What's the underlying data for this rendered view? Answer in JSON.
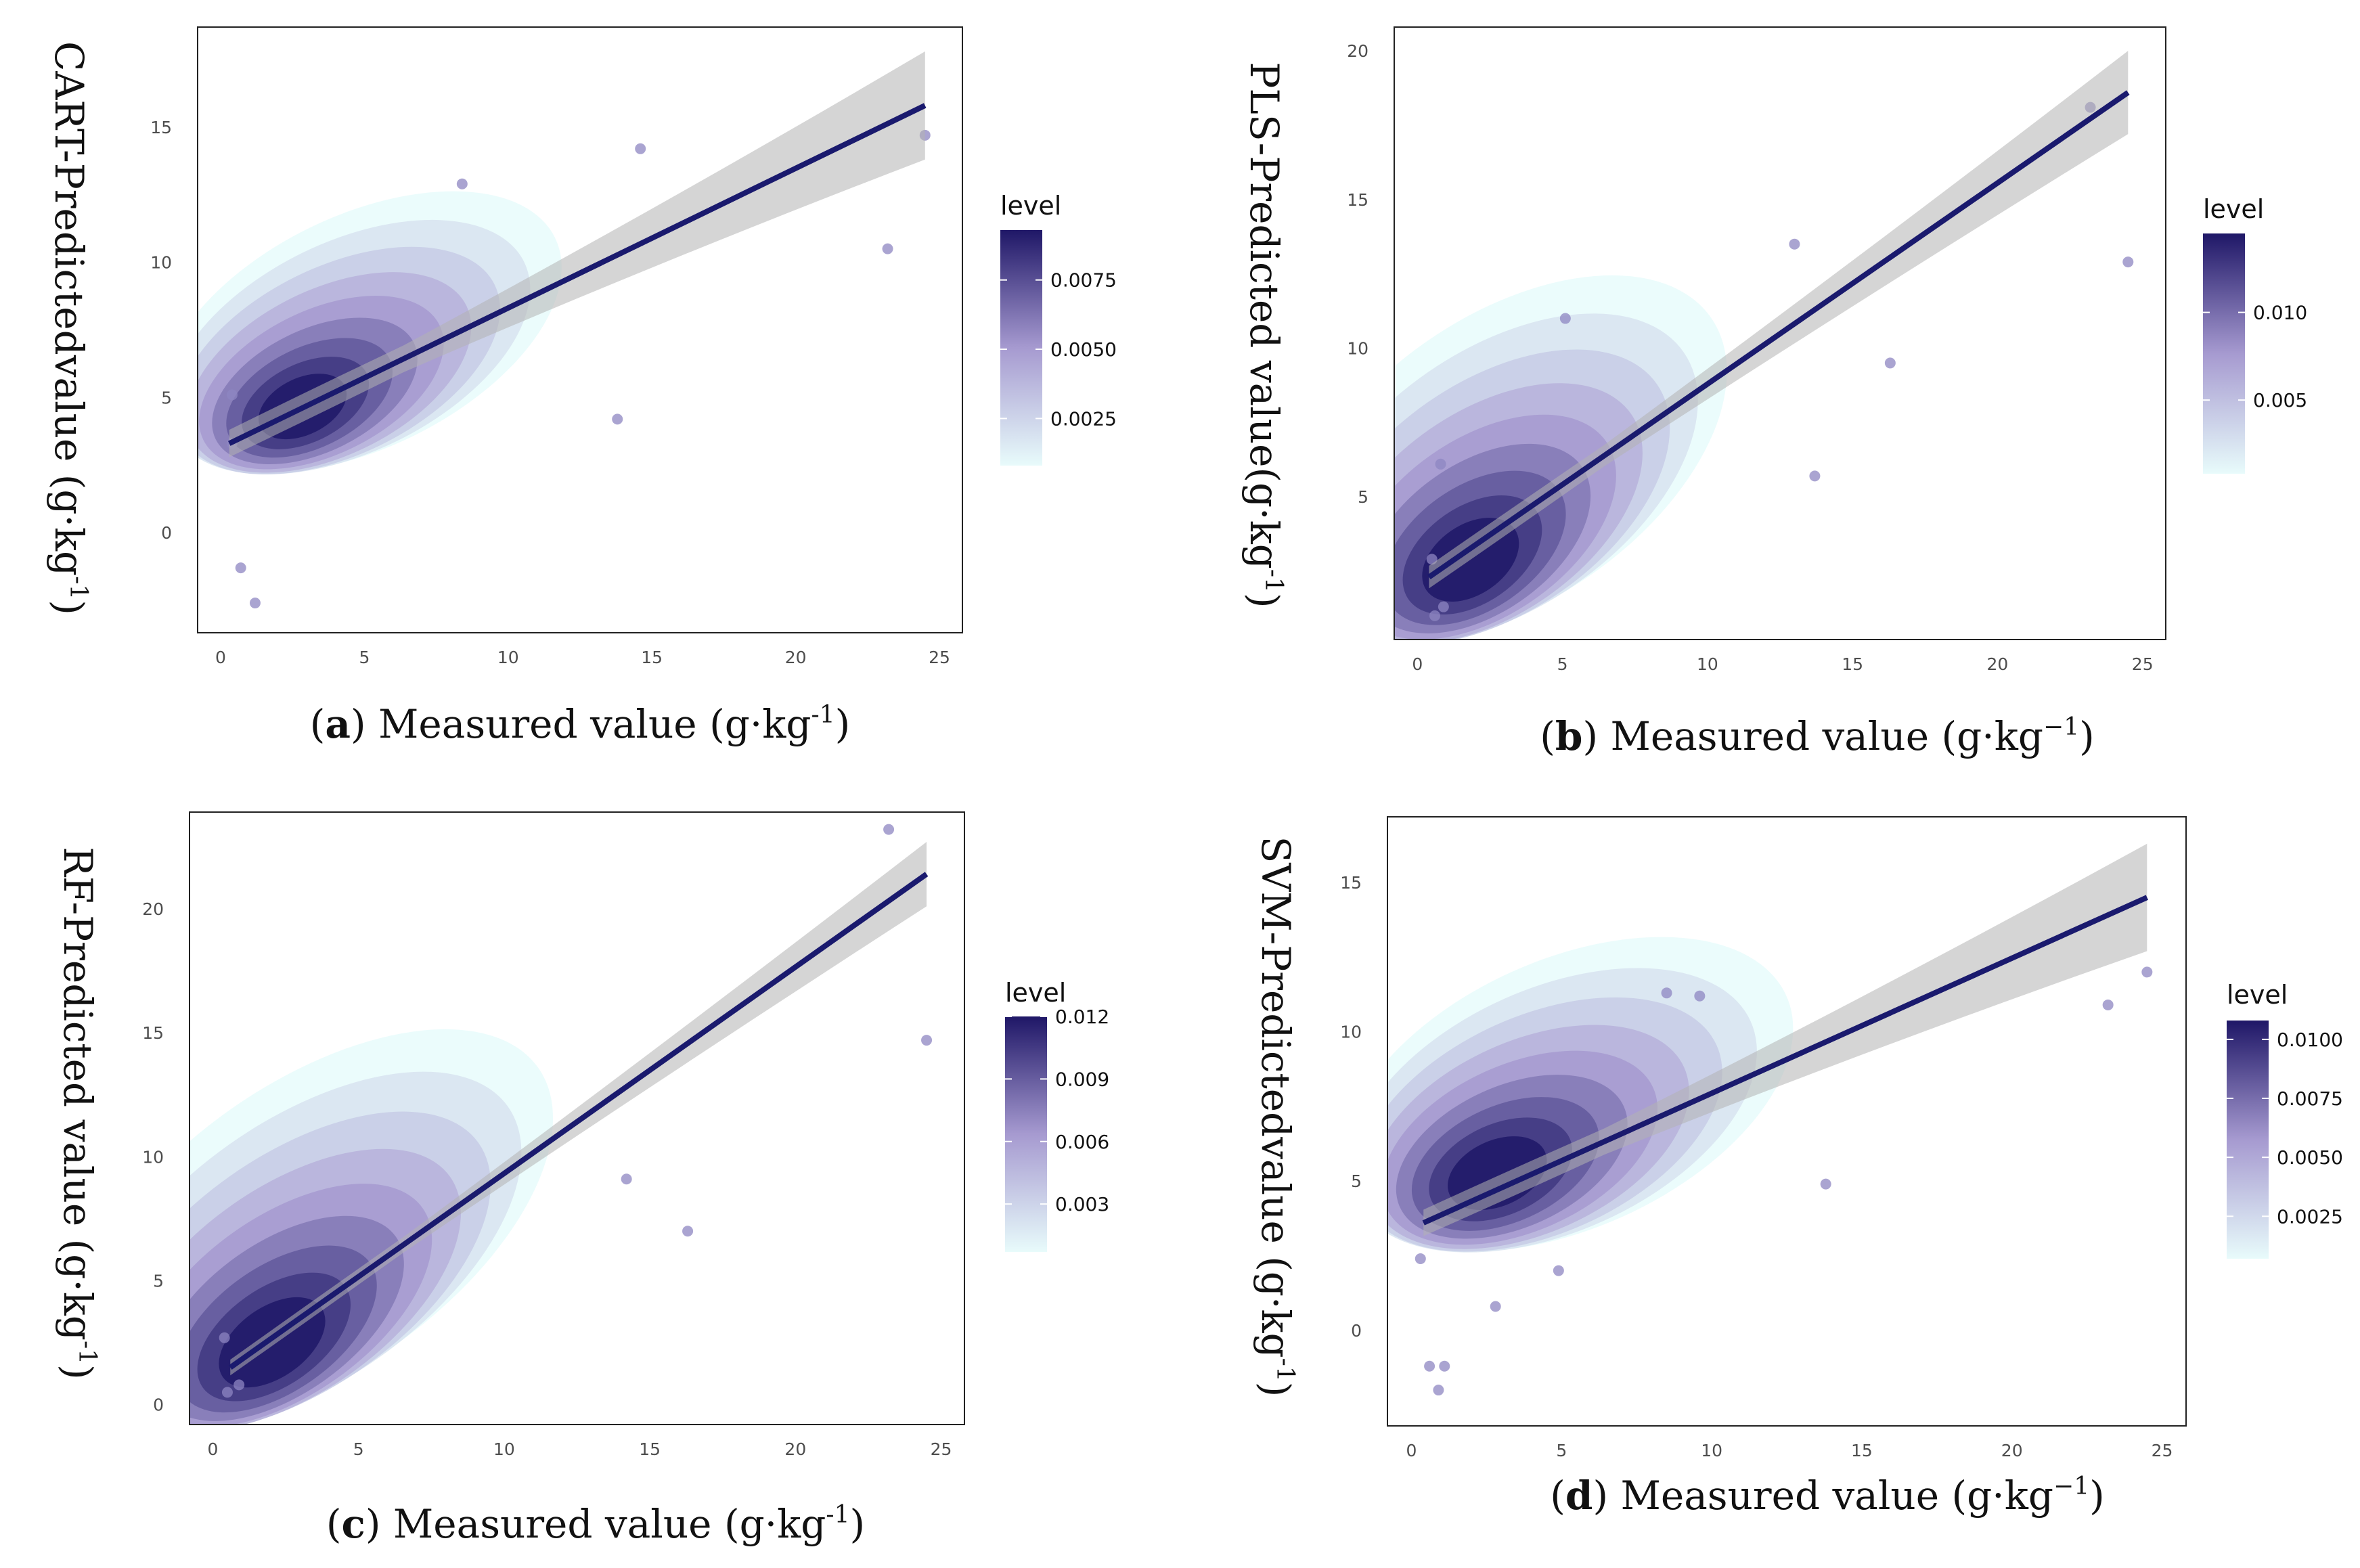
{
  "figure_title": "",
  "colors": {
    "line": "#1a1a6e",
    "band": "#b3b3b3",
    "point": "#8e85c2",
    "gradient_low": "#e8fbfb",
    "gradient_mid": "#a69ad0",
    "gradient_high": "#1f1767"
  },
  "chart_data": [
    {
      "id": "a",
      "type": "density-contour-scatter",
      "panel_label": "a",
      "xlabel": "Measured value (g·kg",
      "xlabel_sup": "-1",
      "xlabel_end": ")",
      "ylabel": "CART-Predictedvalue (g·kg",
      "ylabel_sup": "-1",
      "ylabel_end": ")",
      "xlim": [
        -0.8,
        25.8
      ],
      "ylim": [
        -3.7,
        18.7
      ],
      "xticks": [
        0,
        5,
        10,
        15,
        20,
        25
      ],
      "yticks": [
        0,
        5,
        10,
        15
      ],
      "legend": {
        "title": "level",
        "min": 0.0008,
        "max": 0.0093,
        "ticks": [
          "0.0025",
          "0.0050",
          "0.0075"
        ],
        "tick_values": [
          0.0025,
          0.005,
          0.0075
        ]
      },
      "regression": {
        "x0": 0.3,
        "y0": 3.3,
        "x1": 24.5,
        "y1": 15.8,
        "band0": 0.8,
        "band1": 2.0
      },
      "density_center": [
        2.8,
        4.6
      ],
      "density_extent": [
        7.5,
        4.3
      ],
      "points": [
        [
          24.5,
          14.7
        ],
        [
          23.2,
          10.5
        ],
        [
          14.6,
          14.2
        ],
        [
          13.8,
          4.2
        ],
        [
          1.2,
          -2.6
        ],
        [
          0.4,
          3.3
        ],
        [
          0.4,
          5.1
        ],
        [
          0.7,
          -1.3
        ],
        [
          8.4,
          12.9
        ]
      ]
    },
    {
      "id": "b",
      "type": "density-contour-scatter",
      "panel_label": "b",
      "xlabel": "Measured value (g·kg",
      "xlabel_sup": "−1",
      "xlabel_end": ")",
      "ylabel": "PLS-Predicted value(g·kg",
      "ylabel_sup": "-1",
      "ylabel_end": ")",
      "xlim": [
        -0.8,
        25.8
      ],
      "ylim": [
        0.2,
        20.8
      ],
      "xticks": [
        0,
        5,
        10,
        15,
        20,
        25
      ],
      "yticks": [
        5,
        10,
        15,
        20
      ],
      "legend": {
        "title": "level",
        "min": 0.0008,
        "max": 0.0145,
        "ticks": [
          "0.005",
          "0.010"
        ],
        "tick_values": [
          0.005,
          0.01
        ]
      },
      "regression": {
        "x0": 0.4,
        "y0": 2.3,
        "x1": 24.5,
        "y1": 18.6,
        "band0": 0.6,
        "band1": 1.4
      },
      "density_center": [
        1.8,
        2.8
      ],
      "density_extent": [
        8.5,
        4.8
      ],
      "points": [
        [
          24.5,
          12.9
        ],
        [
          23.2,
          18.1
        ],
        [
          16.3,
          9.5
        ],
        [
          13.7,
          5.7
        ],
        [
          5.1,
          11.0
        ],
        [
          0.8,
          6.1
        ],
        [
          0.6,
          1.0
        ],
        [
          0.9,
          1.3
        ],
        [
          0.5,
          2.9
        ],
        [
          13.0,
          13.5
        ]
      ]
    },
    {
      "id": "c",
      "type": "density-contour-scatter",
      "panel_label": "c",
      "xlabel": "Measured value (g·kg",
      "xlabel_sup": "-1",
      "xlabel_end": ")",
      "ylabel": "RF-Predicted value (g·kg",
      "ylabel_sup": "-1",
      "ylabel_end": ")",
      "xlim": [
        -0.8,
        25.8
      ],
      "ylim": [
        -0.8,
        23.9
      ],
      "xticks": [
        0,
        5,
        10,
        15,
        20,
        25
      ],
      "yticks": [
        0,
        5,
        10,
        15,
        20
      ],
      "legend": {
        "title": "level",
        "min": 0.0007,
        "max": 0.012,
        "ticks": [
          "0.003",
          "0.006",
          "0.009",
          "0.012"
        ],
        "tick_values": [
          0.003,
          0.006,
          0.009,
          0.012
        ]
      },
      "regression": {
        "x0": 0.6,
        "y0": 1.5,
        "x1": 24.5,
        "y1": 21.4,
        "band0": 0.5,
        "band1": 1.3
      },
      "density_center": [
        2.0,
        2.4
      ],
      "density_extent": [
        9.5,
        5.8
      ],
      "points": [
        [
          23.2,
          23.2
        ],
        [
          24.5,
          14.7
        ],
        [
          16.3,
          7.0
        ],
        [
          0.4,
          2.7
        ],
        [
          0.5,
          0.5
        ],
        [
          0.9,
          0.8
        ],
        [
          14.2,
          9.1
        ]
      ]
    },
    {
      "id": "d",
      "type": "density-contour-scatter",
      "panel_label": "d",
      "xlabel": "Measured value (g·kg",
      "xlabel_sup": "−1",
      "xlabel_end": ")",
      "ylabel": "SVM-Predictedvalue (g·kg",
      "ylabel_sup": "-1",
      "ylabel_end": ")",
      "xlim": [
        -0.8,
        25.8
      ],
      "ylim": [
        -3.2,
        17.2
      ],
      "xticks": [
        0,
        5,
        10,
        15,
        20,
        25
      ],
      "yticks": [
        0,
        5,
        10,
        15
      ],
      "legend": {
        "title": "level",
        "min": 0.0007,
        "max": 0.0108,
        "ticks": [
          "0.0025",
          "0.0050",
          "0.0075",
          "0.0100"
        ],
        "tick_values": [
          0.0025,
          0.005,
          0.0075,
          0.01
        ]
      },
      "regression": {
        "x0": 0.4,
        "y0": 3.6,
        "x1": 24.5,
        "y1": 14.5,
        "band0": 0.7,
        "band1": 1.8
      },
      "density_center": [
        2.8,
        5.2
      ],
      "density_extent": [
        8.0,
        4.5
      ],
      "points": [
        [
          24.5,
          12.0
        ],
        [
          23.2,
          10.9
        ],
        [
          13.8,
          4.9
        ],
        [
          0.9,
          -2.0
        ],
        [
          0.3,
          2.4
        ],
        [
          0.6,
          -1.2
        ],
        [
          8.5,
          11.3
        ],
        [
          9.6,
          11.2
        ],
        [
          4.9,
          2.0
        ],
        [
          2.8,
          0.8
        ],
        [
          1.1,
          -1.2
        ]
      ]
    }
  ]
}
